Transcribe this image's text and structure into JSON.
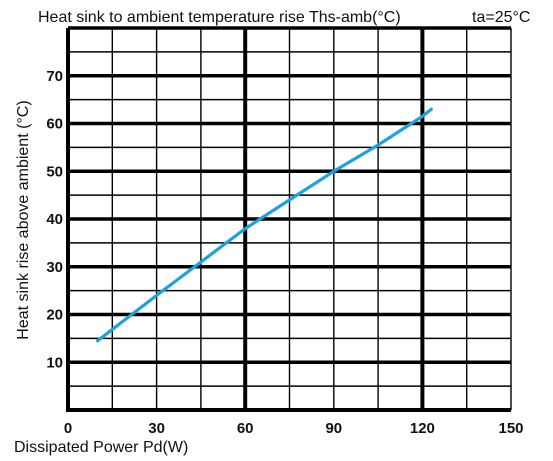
{
  "chart_data": {
    "type": "line",
    "title": "Heat sink to ambient temperature rise Ths-amb(°C)",
    "condition": "ta=25°C",
    "xlabel": "Dissipated Power Pd(W)",
    "ylabel": "Heat sink rise above ambient (°C)",
    "xlim": [
      0,
      150
    ],
    "ylim": [
      0,
      80
    ],
    "x_ticks": [
      0,
      30,
      60,
      90,
      120,
      150
    ],
    "y_ticks": [
      10,
      20,
      30,
      40,
      50,
      60,
      70
    ],
    "x_tick_labels": [
      "0",
      "30",
      "60",
      "90",
      "120",
      "150"
    ],
    "y_tick_labels": [
      "10",
      "20",
      "30",
      "40",
      "50",
      "60",
      "70"
    ],
    "grid": true,
    "series": [
      {
        "color": "#1aa3df",
        "x": [
          10,
          30,
          45,
          60,
          75,
          90,
          105,
          120,
          123
        ],
        "y": [
          14.5,
          24,
          31,
          38,
          44,
          50,
          55.5,
          61.5,
          63
        ]
      }
    ]
  }
}
